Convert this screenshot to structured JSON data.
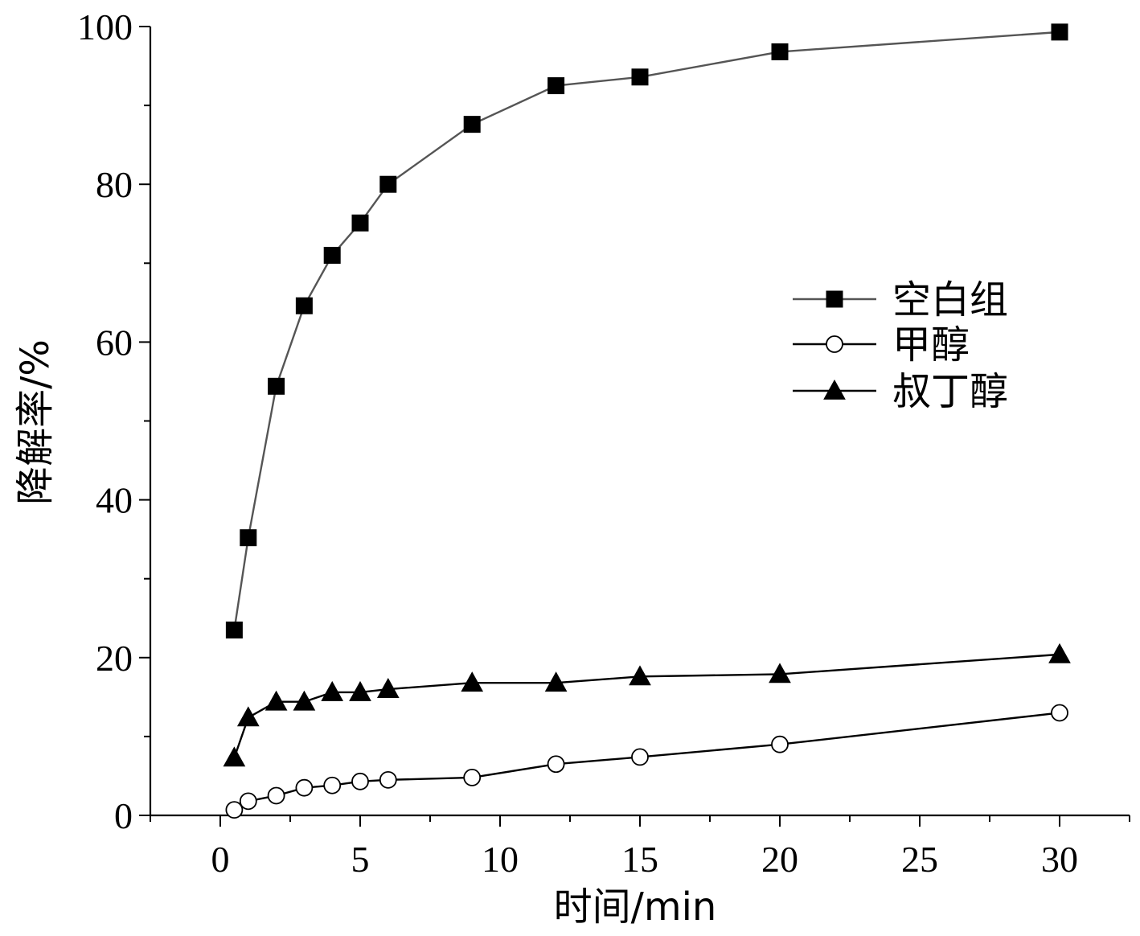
{
  "chart_data": {
    "type": "line",
    "xlabel": "时间/min",
    "ylabel": "降解率/%",
    "xlim": [
      -2.5,
      32.5
    ],
    "ylim": [
      0,
      100
    ],
    "xticks": [
      0,
      5,
      10,
      15,
      20,
      25,
      30
    ],
    "yticks": [
      0,
      20,
      40,
      60,
      80,
      100
    ],
    "x_minor_step": 2.5,
    "y_minor_step": 10,
    "grid": false,
    "legend_position": "right-middle",
    "series": [
      {
        "name": "空白组",
        "marker": "filled-square",
        "line_color": "#555555",
        "x": [
          0.5,
          1,
          2,
          3,
          4,
          5,
          6,
          9,
          12,
          15,
          20,
          30
        ],
        "y": [
          23.5,
          35.2,
          54.4,
          64.6,
          71.0,
          75.1,
          80.0,
          87.6,
          92.5,
          93.6,
          96.8,
          99.3
        ]
      },
      {
        "name": "甲醇",
        "marker": "open-circle",
        "line_color": "#000000",
        "x": [
          0.5,
          1,
          2,
          3,
          4,
          5,
          6,
          9,
          12,
          15,
          20,
          30
        ],
        "y": [
          0.7,
          1.8,
          2.5,
          3.5,
          3.8,
          4.3,
          4.5,
          4.8,
          6.5,
          7.4,
          9.0,
          13.0
        ]
      },
      {
        "name": "叔丁醇",
        "marker": "filled-triangle",
        "line_color": "#000000",
        "x": [
          0.5,
          1,
          2,
          3,
          4,
          5,
          6,
          9,
          12,
          15,
          20,
          30
        ],
        "y": [
          7.3,
          12.4,
          14.4,
          14.4,
          15.6,
          15.6,
          16.0,
          16.8,
          16.8,
          17.6,
          17.9,
          20.4
        ]
      }
    ]
  }
}
